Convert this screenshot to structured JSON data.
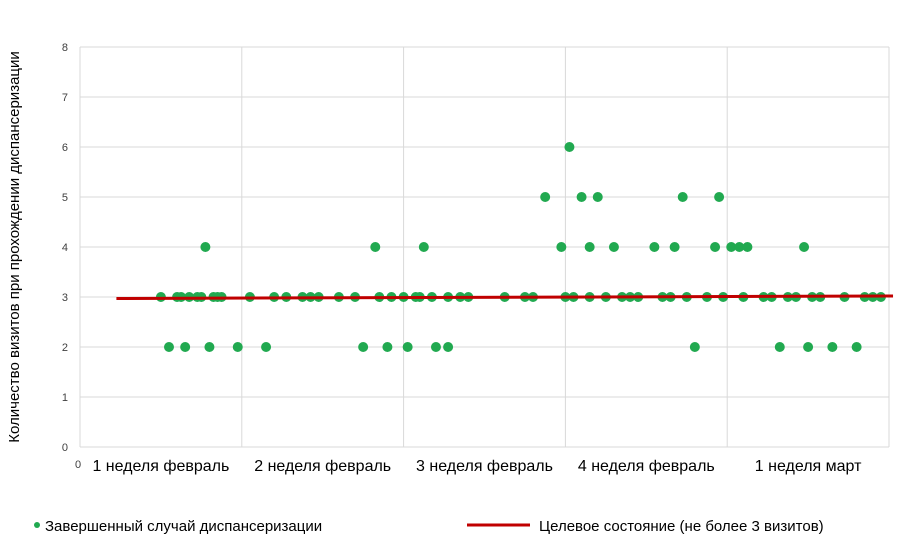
{
  "chart_data": {
    "type": "scatter",
    "ylabel": "Количество визитов при прохождении диспансеризации",
    "ylim": [
      0,
      8
    ],
    "yticks": [
      "0",
      "1",
      "2",
      "3",
      "4",
      "5",
      "6",
      "7",
      "8"
    ],
    "x_origin_label": "0",
    "categories": [
      "1 неделя февраль",
      "2 неделя февраль",
      "3 неделя февраль",
      "4 неделя февраль",
      "1 неделя март"
    ],
    "grid": "vertical lines between weeks, horizontal lines at each integer",
    "legend_placement": "bottom",
    "series": [
      {
        "name": "Завершенный случай диспансеризации",
        "kind": "points",
        "color": "#21a950",
        "points": [
          [
            1,
            3
          ],
          [
            1.1,
            2
          ],
          [
            1.2,
            3
          ],
          [
            1.25,
            3
          ],
          [
            1.3,
            2
          ],
          [
            1.35,
            3
          ],
          [
            1.45,
            3
          ],
          [
            1.5,
            3
          ],
          [
            1.55,
            4
          ],
          [
            1.6,
            2
          ],
          [
            1.65,
            3
          ],
          [
            1.7,
            3
          ],
          [
            1.75,
            3
          ],
          [
            1.95,
            2
          ],
          [
            2.1,
            3
          ],
          [
            2.3,
            2
          ],
          [
            2.4,
            3
          ],
          [
            2.55,
            3
          ],
          [
            2.75,
            3
          ],
          [
            2.85,
            3
          ],
          [
            2.95,
            3
          ],
          [
            3.2,
            3
          ],
          [
            3.4,
            3
          ],
          [
            3.5,
            2
          ],
          [
            3.65,
            4
          ],
          [
            3.7,
            3
          ],
          [
            3.8,
            2
          ],
          [
            3.85,
            3
          ],
          [
            4.0,
            3
          ],
          [
            4.05,
            2
          ],
          [
            4.15,
            3
          ],
          [
            4.2,
            3
          ],
          [
            4.25,
            4
          ],
          [
            4.35,
            3
          ],
          [
            4.4,
            2
          ],
          [
            4.55,
            3
          ],
          [
            4.55,
            2
          ],
          [
            4.7,
            3
          ],
          [
            4.8,
            3
          ],
          [
            5.25,
            3
          ],
          [
            5.5,
            3
          ],
          [
            5.6,
            3
          ],
          [
            5.75,
            5
          ],
          [
            5.95,
            4
          ],
          [
            6.0,
            3
          ],
          [
            6.05,
            6
          ],
          [
            6.1,
            3
          ],
          [
            6.2,
            5
          ],
          [
            6.3,
            4
          ],
          [
            6.3,
            3
          ],
          [
            6.4,
            5
          ],
          [
            6.5,
            3
          ],
          [
            6.6,
            4
          ],
          [
            6.7,
            3
          ],
          [
            6.8,
            3
          ],
          [
            6.9,
            3
          ],
          [
            7.1,
            4
          ],
          [
            7.2,
            3
          ],
          [
            7.3,
            3
          ],
          [
            7.35,
            4
          ],
          [
            7.45,
            5
          ],
          [
            7.5,
            3
          ],
          [
            7.6,
            2
          ],
          [
            7.75,
            3
          ],
          [
            7.85,
            4
          ],
          [
            7.9,
            5
          ],
          [
            7.95,
            3
          ],
          [
            8.05,
            4
          ],
          [
            8.15,
            4
          ],
          [
            8.2,
            3
          ],
          [
            8.25,
            4
          ],
          [
            8.45,
            3
          ],
          [
            8.55,
            3
          ],
          [
            8.65,
            2
          ],
          [
            8.75,
            3
          ],
          [
            8.85,
            3
          ],
          [
            8.95,
            4
          ],
          [
            9.0,
            2
          ],
          [
            9.05,
            3
          ],
          [
            9.15,
            3
          ],
          [
            9.3,
            2
          ],
          [
            9.45,
            3
          ],
          [
            9.6,
            2
          ],
          [
            9.7,
            3
          ],
          [
            9.8,
            3
          ],
          [
            9.9,
            3
          ]
        ]
      },
      {
        "name": "Целевое состояние (не более 3 визитов)",
        "kind": "line",
        "color": "#c00000",
        "x": [
          0.45,
          10.05
        ],
        "y": [
          2.97,
          3.02
        ]
      }
    ]
  }
}
